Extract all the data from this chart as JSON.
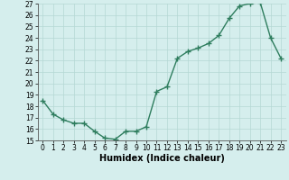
{
  "x": [
    0,
    1,
    2,
    3,
    4,
    5,
    6,
    7,
    8,
    9,
    10,
    11,
    12,
    13,
    14,
    15,
    16,
    17,
    18,
    19,
    20,
    21,
    22,
    23
  ],
  "y": [
    18.5,
    17.3,
    16.8,
    16.5,
    16.5,
    15.8,
    15.2,
    15.1,
    15.8,
    15.8,
    16.2,
    19.3,
    19.7,
    22.2,
    22.8,
    23.1,
    23.5,
    24.2,
    25.7,
    26.8,
    27.0,
    27.1,
    24.0,
    22.2
  ],
  "xlabel": "Humidex (Indice chaleur)",
  "ylabel": "",
  "ylim": [
    15,
    27
  ],
  "xlim_min": -0.5,
  "xlim_max": 23.5,
  "yticks": [
    15,
    16,
    17,
    18,
    19,
    20,
    21,
    22,
    23,
    24,
    25,
    26,
    27
  ],
  "xticks": [
    0,
    1,
    2,
    3,
    4,
    5,
    6,
    7,
    8,
    9,
    10,
    11,
    12,
    13,
    14,
    15,
    16,
    17,
    18,
    19,
    20,
    21,
    22,
    23
  ],
  "xtick_labels": [
    "0",
    "1",
    "2",
    "3",
    "4",
    "5",
    "6",
    "7",
    "8",
    "9",
    "10",
    "11",
    "12",
    "13",
    "14",
    "15",
    "16",
    "17",
    "18",
    "19",
    "20",
    "21",
    "22",
    "23"
  ],
  "line_color": "#2e7d5e",
  "marker": "+",
  "marker_size": 5,
  "bg_color": "#d5eeed",
  "grid_color": "#b5d8d4",
  "line_width": 1.0,
  "tick_fontsize": 5.5,
  "xlabel_fontsize": 7,
  "fig_width": 3.2,
  "fig_height": 2.0,
  "dpi": 100
}
